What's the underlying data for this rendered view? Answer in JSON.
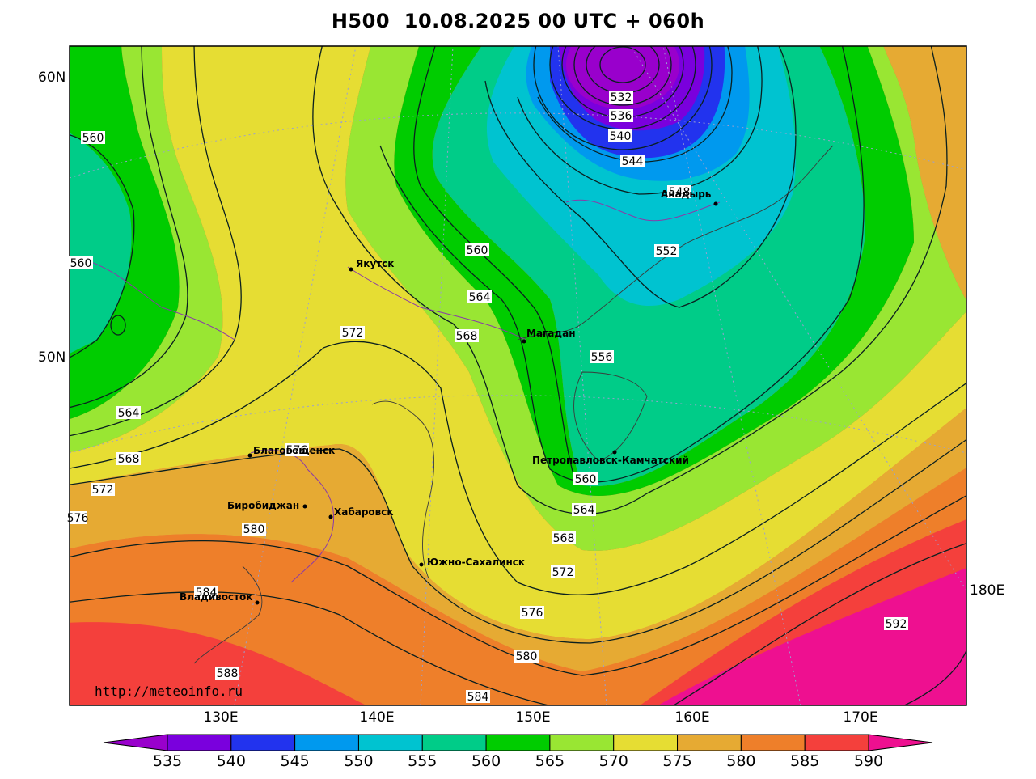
{
  "title": "H500  10.08.2025 00 UTC + 060h",
  "credit": "http://meteoinfo.ru",
  "lat_labels": [
    "60N",
    "50N"
  ],
  "lon_labels": [
    "130E",
    "140E",
    "150E",
    "160E",
    "170E",
    "180E"
  ],
  "cities": [
    {
      "name": "Якутск"
    },
    {
      "name": "Магадан"
    },
    {
      "name": "Анадырь"
    },
    {
      "name": "Петропавловск-Камчатский"
    },
    {
      "name": "Благовещенск"
    },
    {
      "name": "Биробиджан"
    },
    {
      "name": "Хабаровск"
    },
    {
      "name": "Южно-Сахалинск"
    },
    {
      "name": "Владивосток"
    }
  ],
  "contour_labels": [
    "532",
    "536",
    "540",
    "544",
    "548",
    "552",
    "556",
    "560",
    "560",
    "560",
    "560",
    "564",
    "564",
    "564",
    "568",
    "568",
    "568",
    "572",
    "572",
    "572",
    "576",
    "576",
    "576",
    "580",
    "580",
    "584",
    "584",
    "588",
    "592"
  ],
  "colorbar": {
    "ticks": [
      "535",
      "540",
      "545",
      "550",
      "555",
      "560",
      "565",
      "570",
      "575",
      "580",
      "585",
      "590"
    ],
    "colors": [
      "#9900cc",
      "#7a00dd",
      "#2233ee",
      "#0099ee",
      "#00c3d0",
      "#00cc88",
      "#00cc00",
      "#99e633",
      "#e6dd33",
      "#e6aa33",
      "#ee7f2a",
      "#f4403c",
      "#ee1090"
    ]
  }
}
